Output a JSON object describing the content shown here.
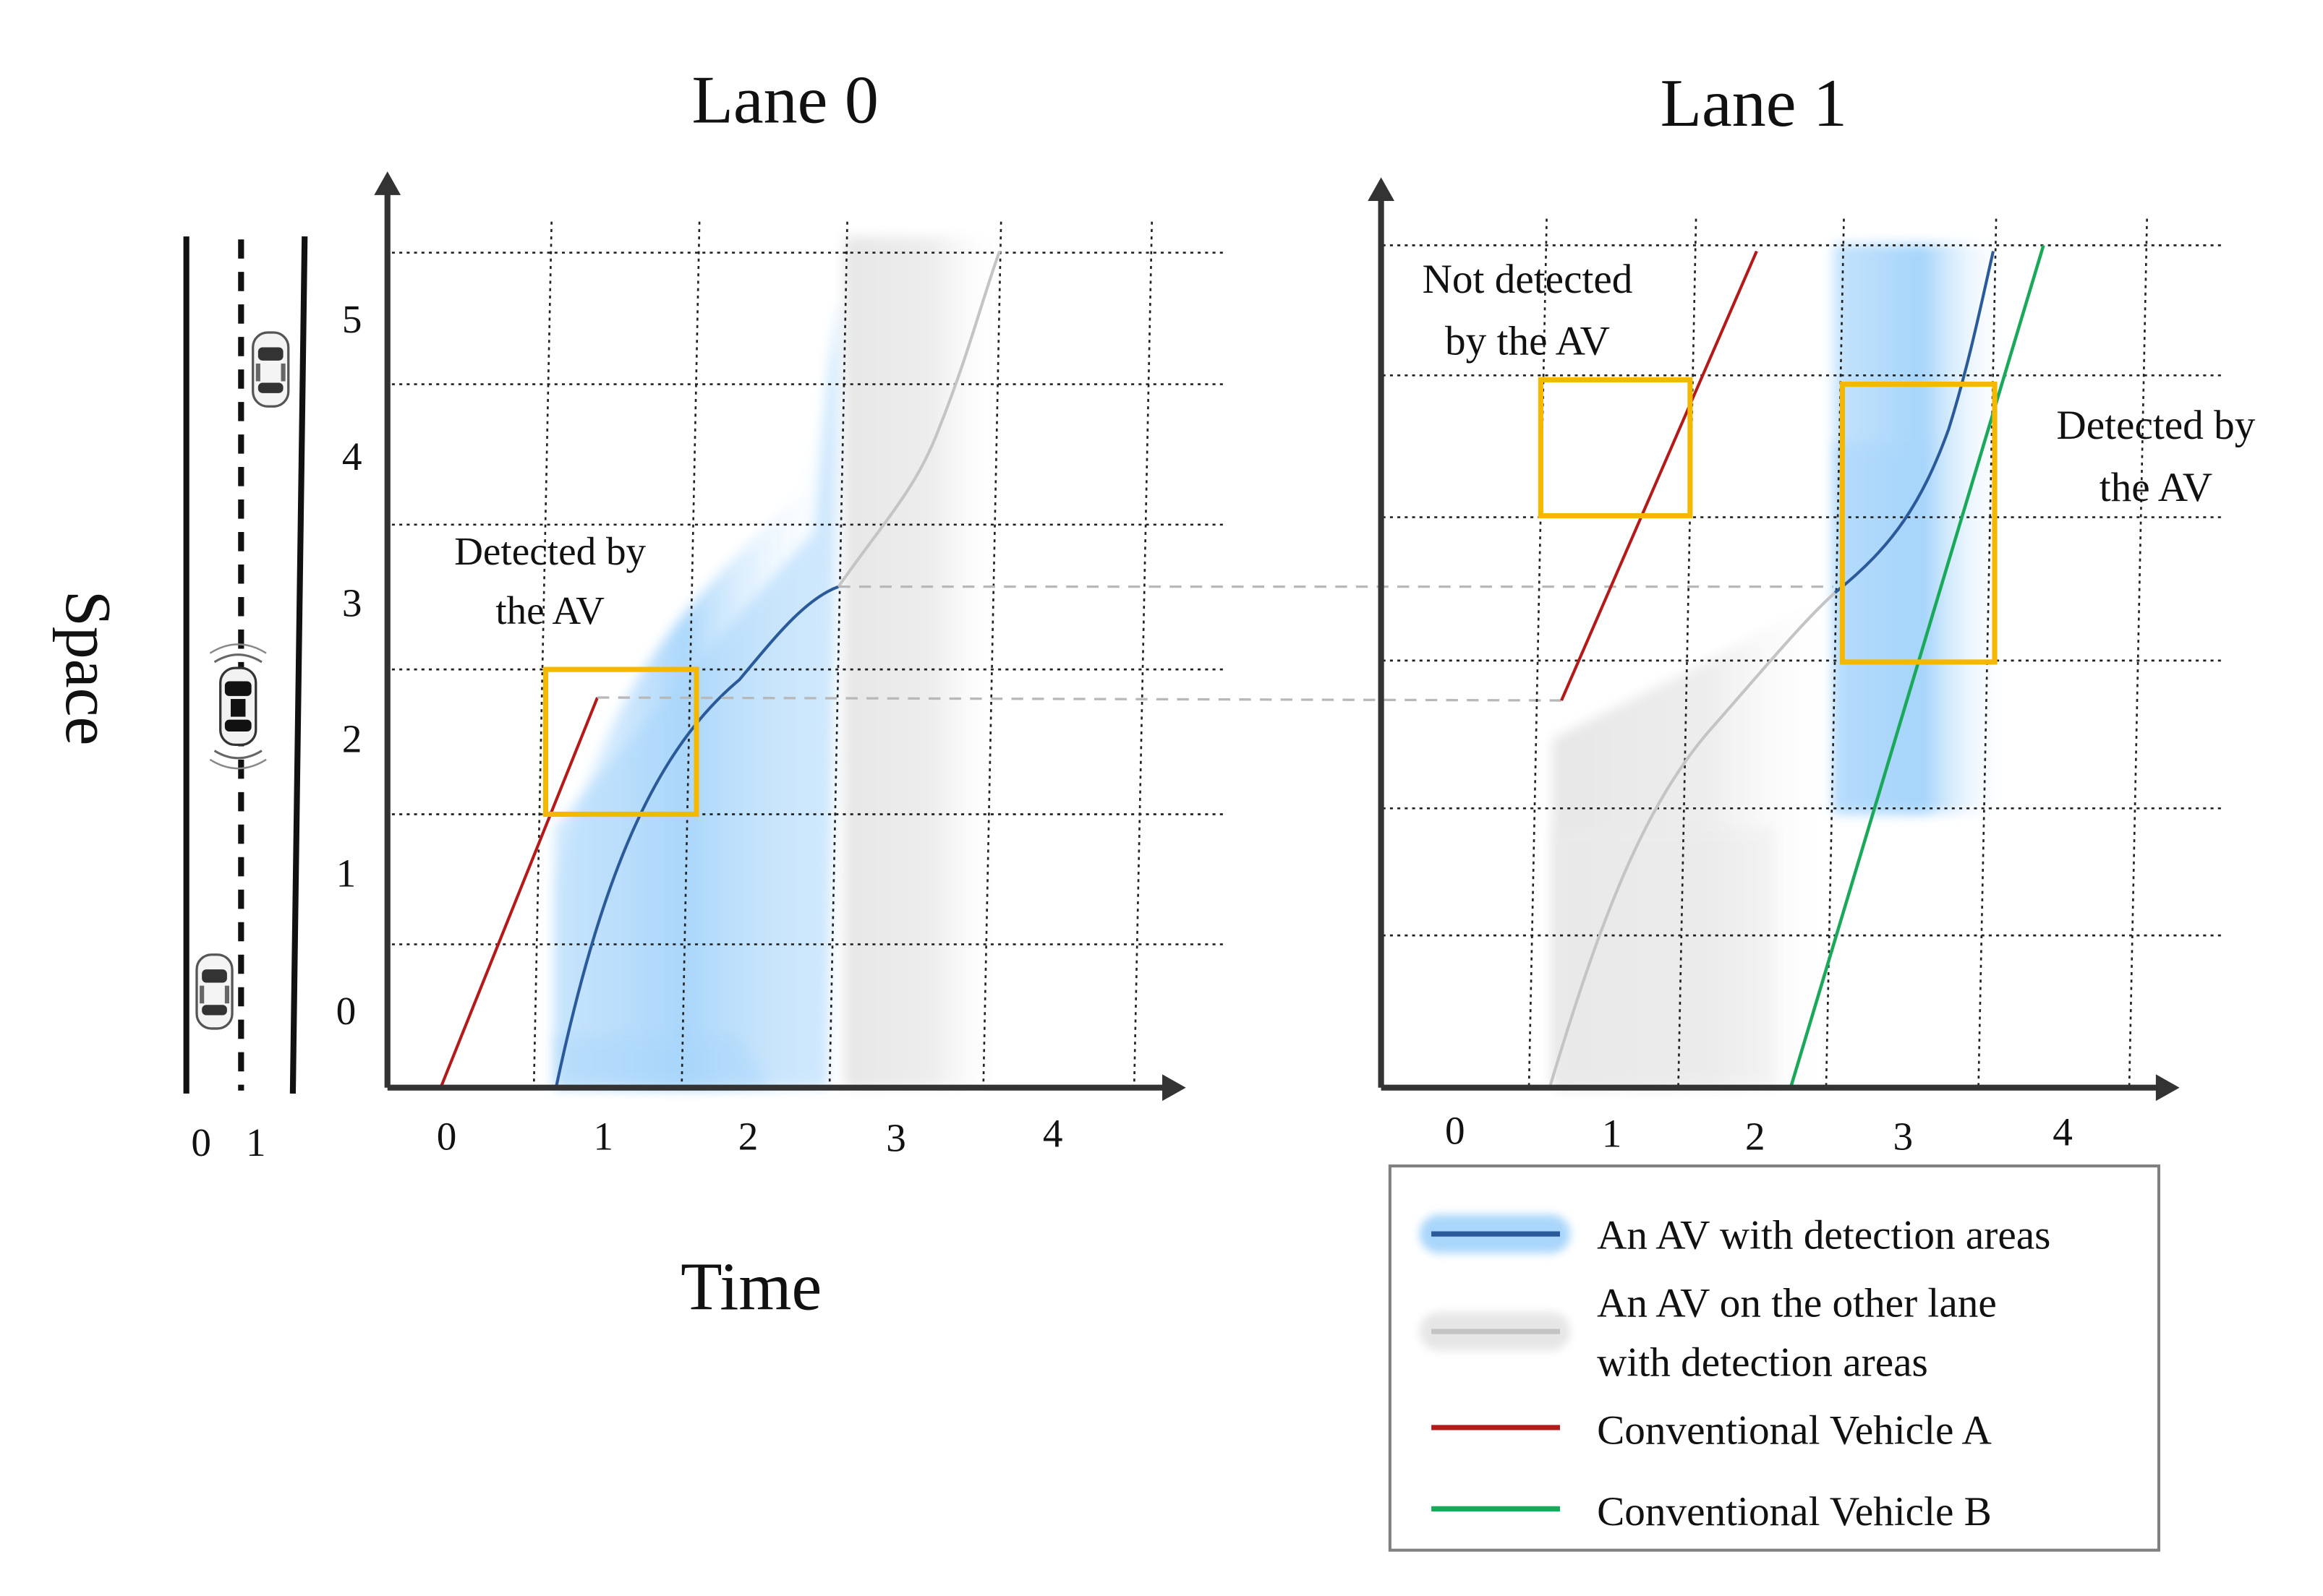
{
  "lane0": {
    "title": "Lane 0",
    "x_ticks": [
      "0",
      "1",
      "2",
      "3",
      "4"
    ],
    "y_ticks": [
      "0",
      "1",
      "2",
      "3",
      "4",
      "5"
    ],
    "annotation": [
      "Detected by",
      "the AV"
    ]
  },
  "lane1": {
    "title": "Lane 1",
    "x_ticks": [
      "0",
      "1",
      "2",
      "3",
      "4"
    ],
    "annotation_not_detected": [
      "Not detected",
      "by the AV"
    ],
    "annotation_detected": [
      "Detected by",
      "the AV"
    ]
  },
  "road": {
    "lane_labels": [
      "0",
      "1"
    ]
  },
  "axes": {
    "xlabel": "Time",
    "ylabel": "Space"
  },
  "legend": {
    "items": [
      {
        "lines": [
          "An AV with detection areas"
        ],
        "color": "#2a5a9a"
      },
      {
        "lines": [
          "An AV on the other lane",
          "with detection areas"
        ],
        "color": "#c4c4c4"
      },
      {
        "lines": [
          "Conventional Vehicle A"
        ],
        "color": "#b51a1a"
      },
      {
        "lines": [
          "Conventional Vehicle B"
        ],
        "color": "#1aa85a"
      }
    ]
  },
  "colors": {
    "detect_blue": "#9fd2fb",
    "detect_grey": "#e4e4e4",
    "highlight_box": "#f5b800",
    "av_line": "#2a5a9a",
    "av_other_line": "#c4c4c4",
    "vehicle_a": "#b51a1a",
    "vehicle_b": "#1aa85a"
  }
}
